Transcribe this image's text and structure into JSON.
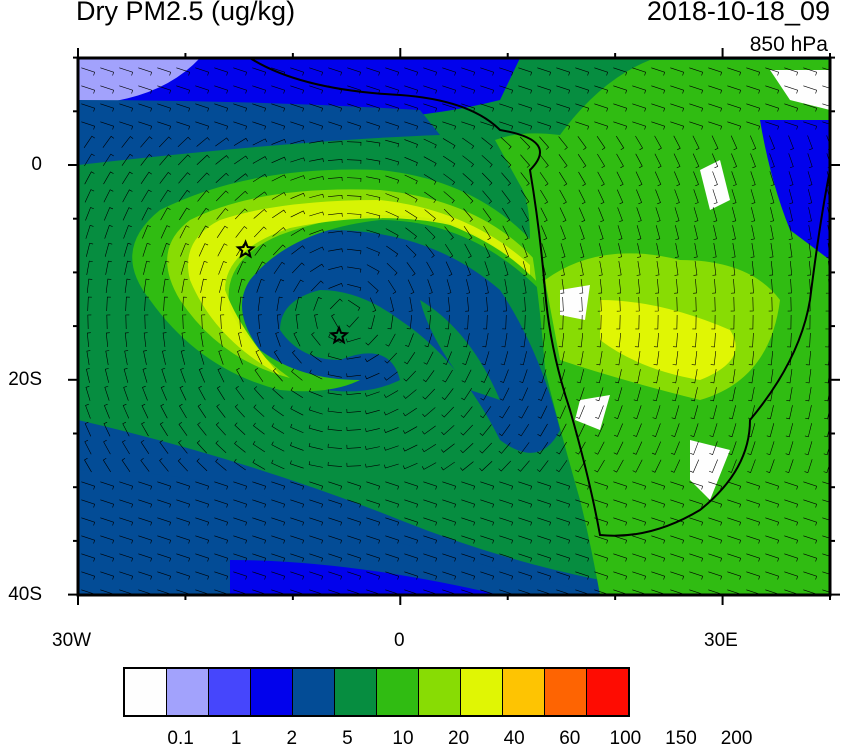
{
  "title": "Dry PM2.5 (ug/kg)",
  "valid_time": "2018-10-18_09",
  "level": "850 hPa",
  "map": {
    "lon_range": [
      -30,
      40
    ],
    "lat_range": [
      -40,
      10
    ],
    "lat_labels": [
      "0",
      "20S",
      "40S"
    ],
    "lon_labels": [
      "30W",
      "0",
      "30E"
    ],
    "markers": [
      {
        "name": "star",
        "lon": -14.4,
        "lat": -7.9
      },
      {
        "name": "star",
        "lon": -5.7,
        "lat": -15.9
      }
    ]
  },
  "colorbar": {
    "colors": [
      "#fefefe",
      "#a2a2fc",
      "#4646fc",
      "#0202ec",
      "#034c96",
      "#068d40",
      "#30bc12",
      "#88dc04",
      "#e0f604",
      "#fec402",
      "#fe6402",
      "#fe0c02"
    ],
    "labels": [
      "0.1",
      "1",
      "2",
      "5",
      "10",
      "20",
      "40",
      "60",
      "100",
      "150",
      "200"
    ]
  }
}
